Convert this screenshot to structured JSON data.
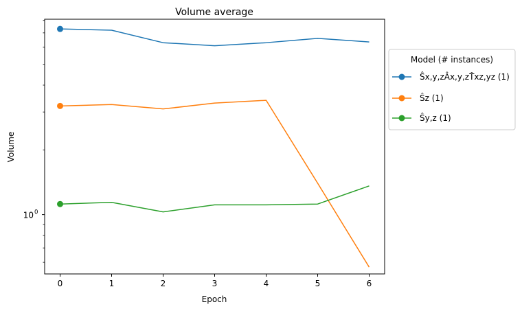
{
  "chart_data": {
    "type": "line",
    "title": "Volume average",
    "xlabel": "Epoch",
    "ylabel": "Volume",
    "yscale": "log",
    "xlim": [
      -0.3,
      6.3
    ],
    "ylim": [
      0.53,
      8.1
    ],
    "x": [
      0,
      1,
      2,
      3,
      4,
      5,
      6
    ],
    "x_ticks": [
      "0",
      "1",
      "2",
      "3",
      "4",
      "5",
      "6"
    ],
    "y_ticks": [
      {
        "value": 1,
        "label": "10",
        "exp": "0"
      }
    ],
    "grid": false,
    "legend": {
      "title": "Model (# instances)",
      "placement": "outside-right"
    },
    "series": [
      {
        "name": "Ŝx,y,zÂx,y,zT̂xz,yz (1)",
        "color": "#1f77b4",
        "values": [
          7.3,
          7.2,
          6.3,
          6.1,
          6.3,
          6.6,
          6.35
        ]
      },
      {
        "name": "Ŝz (1)",
        "color": "#ff7f0e",
        "values": [
          3.2,
          3.25,
          3.1,
          3.3,
          3.4,
          1.4,
          0.57
        ]
      },
      {
        "name": "Ŝy,z (1)",
        "color": "#2ca02c",
        "values": [
          1.12,
          1.14,
          1.03,
          1.11,
          1.11,
          1.12,
          1.36
        ]
      }
    ]
  }
}
